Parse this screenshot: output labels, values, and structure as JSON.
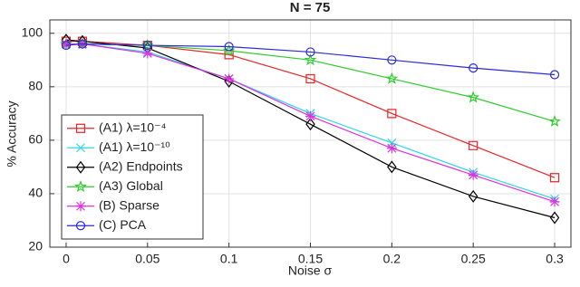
{
  "chart_data": {
    "type": "line",
    "title": "N = 75",
    "x_label": "Noise σ",
    "y_label": "% Accuracy",
    "x": [
      0,
      0.01,
      0.05,
      0.1,
      0.15,
      0.2,
      0.25,
      0.3
    ],
    "xlim": [
      -0.01,
      0.31
    ],
    "xticks": [
      0,
      0.05,
      0.1,
      0.15,
      0.2,
      0.25,
      0.3
    ],
    "ylim": [
      20,
      105
    ],
    "yticks": [
      20,
      40,
      60,
      80,
      100
    ],
    "grid": true,
    "legend": "lower left",
    "series": [
      {
        "name": "(A1) λ=10⁻⁴",
        "color": "#e8262a",
        "marker": "square",
        "values": [
          97,
          97,
          95.5,
          92,
          83,
          70,
          58,
          46
        ]
      },
      {
        "name": "(A1) λ=10⁻¹⁰",
        "color": "#2fd6e8",
        "marker": "x",
        "values": [
          96,
          96,
          93,
          83,
          70,
          59,
          48,
          38
        ]
      },
      {
        "name": "(A2) Endpoints",
        "color": "#000000",
        "marker": "diamond",
        "values": [
          97.5,
          97,
          94.5,
          82,
          66,
          50,
          39,
          31
        ]
      },
      {
        "name": "(A3) Global",
        "color": "#2ecc2e",
        "marker": "star",
        "values": [
          96,
          96,
          95.5,
          93.5,
          90,
          83,
          76,
          67
        ]
      },
      {
        "name": "(B) Sparse",
        "color": "#e030e0",
        "marker": "asterisk",
        "values": [
          96,
          96,
          92.5,
          83,
          69,
          57,
          47,
          37
        ]
      },
      {
        "name": "(C) PCA",
        "color": "#2a2ad6",
        "marker": "circle",
        "values": [
          95.5,
          96,
          95.5,
          95,
          93,
          90,
          87,
          84.5
        ]
      }
    ]
  }
}
